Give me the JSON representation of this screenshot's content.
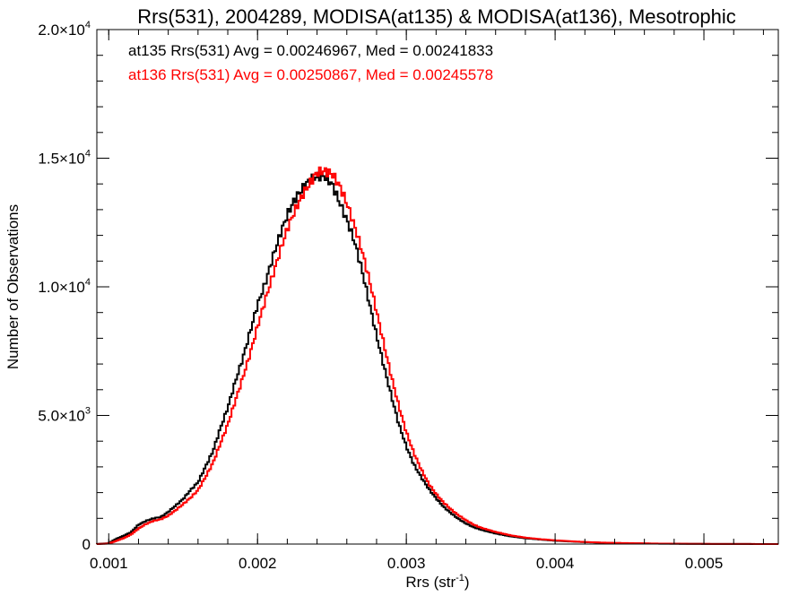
{
  "chart_data": {
    "type": "line",
    "title": "Rrs(531), 2004289, MODISA(at135) & MODISA(at136), Mesotrophic",
    "xlabel_main": "Rrs (str",
    "xlabel_sup": "-1",
    "xlabel_tail": ")",
    "ylabel": "Number of Observations",
    "xlim": [
      0.00092,
      0.0055
    ],
    "ylim": [
      0,
      20000
    ],
    "x_ticks": [
      {
        "value": 0.001,
        "label": "0.001"
      },
      {
        "value": 0.002,
        "label": "0.002"
      },
      {
        "value": 0.003,
        "label": "0.003"
      },
      {
        "value": 0.004,
        "label": "0.004"
      },
      {
        "value": 0.005,
        "label": "0.005"
      }
    ],
    "y_ticks": [
      {
        "value": 0,
        "label": "0",
        "exp": ""
      },
      {
        "value": 5000,
        "label": "5.0×10",
        "exp": "3"
      },
      {
        "value": 10000,
        "label": "1.0×10",
        "exp": "4"
      },
      {
        "value": 15000,
        "label": "1.5×10",
        "exp": "4"
      },
      {
        "value": 20000,
        "label": "2.0×10",
        "exp": "4"
      }
    ],
    "grid": false,
    "legend_position": "top-left",
    "annotations": [
      {
        "text": "at135 Rrs(531) Avg = 0.00246967, Med = 0.00241833",
        "color": "#000000"
      },
      {
        "text": "at136 Rrs(531) Avg = 0.00250867, Med = 0.00245578",
        "color": "#ff0000"
      }
    ],
    "series": [
      {
        "color": "#000000",
        "x": [
          0.00092,
          0.001,
          0.00105,
          0.0011,
          0.00115,
          0.0012,
          0.00125,
          0.0013,
          0.00135,
          0.0014,
          0.00145,
          0.0015,
          0.00155,
          0.0016,
          0.00165,
          0.0017,
          0.00175,
          0.0018,
          0.00185,
          0.0019,
          0.00195,
          0.002,
          0.00205,
          0.0021,
          0.00215,
          0.0022,
          0.00225,
          0.0023,
          0.00235,
          0.0024,
          0.00245,
          0.0025,
          0.00255,
          0.0026,
          0.00265,
          0.0027,
          0.00275,
          0.0028,
          0.00285,
          0.0029,
          0.00295,
          0.003,
          0.00305,
          0.0031,
          0.00315,
          0.0032,
          0.00325,
          0.0033,
          0.00335,
          0.0034,
          0.00345,
          0.0035,
          0.0036,
          0.0037,
          0.0038,
          0.0039,
          0.004,
          0.0041,
          0.0042,
          0.0043,
          0.0044,
          0.0045,
          0.0047,
          0.005,
          0.0055
        ],
        "y": [
          0,
          30,
          200,
          320,
          460,
          750,
          900,
          1000,
          1050,
          1250,
          1500,
          1750,
          2100,
          2400,
          3000,
          3600,
          4500,
          5300,
          6300,
          7200,
          8250,
          9300,
          10100,
          11100,
          12000,
          12800,
          13400,
          13800,
          14150,
          14300,
          14300,
          14000,
          13300,
          12600,
          11800,
          10700,
          9400,
          8100,
          6900,
          5750,
          4650,
          3800,
          3100,
          2600,
          2150,
          1780,
          1450,
          1200,
          980,
          800,
          660,
          560,
          410,
          300,
          225,
          175,
          130,
          100,
          75,
          55,
          40,
          30,
          15,
          6,
          0
        ]
      },
      {
        "color": "#ff0000",
        "x": [
          0.00092,
          0.001,
          0.00105,
          0.0011,
          0.00115,
          0.0012,
          0.00125,
          0.0013,
          0.00135,
          0.0014,
          0.00145,
          0.0015,
          0.00155,
          0.0016,
          0.00165,
          0.0017,
          0.00175,
          0.0018,
          0.00185,
          0.0019,
          0.00195,
          0.002,
          0.00205,
          0.0021,
          0.00215,
          0.0022,
          0.00225,
          0.0023,
          0.00235,
          0.0024,
          0.00245,
          0.0025,
          0.00255,
          0.0026,
          0.00265,
          0.0027,
          0.00275,
          0.0028,
          0.00285,
          0.0029,
          0.00295,
          0.003,
          0.00305,
          0.0031,
          0.00315,
          0.0032,
          0.00325,
          0.0033,
          0.00335,
          0.0034,
          0.00345,
          0.0035,
          0.0036,
          0.0037,
          0.0038,
          0.0039,
          0.004,
          0.0041,
          0.0042,
          0.0043,
          0.0044,
          0.0045,
          0.0047,
          0.005,
          0.0055
        ],
        "y": [
          0,
          20,
          120,
          230,
          370,
          600,
          780,
          900,
          960,
          1100,
          1320,
          1550,
          1800,
          2100,
          2600,
          3150,
          3900,
          4650,
          5550,
          6450,
          7400,
          8450,
          9450,
          10400,
          11350,
          12250,
          12950,
          13550,
          14000,
          14450,
          14500,
          14400,
          13950,
          13250,
          12400,
          11450,
          10300,
          9050,
          7750,
          6500,
          5350,
          4350,
          3550,
          2900,
          2350,
          1950,
          1620,
          1350,
          1120,
          930,
          760,
          640,
          470,
          340,
          250,
          190,
          145,
          110,
          80,
          60,
          45,
          35,
          18,
          7,
          0
        ]
      }
    ]
  }
}
